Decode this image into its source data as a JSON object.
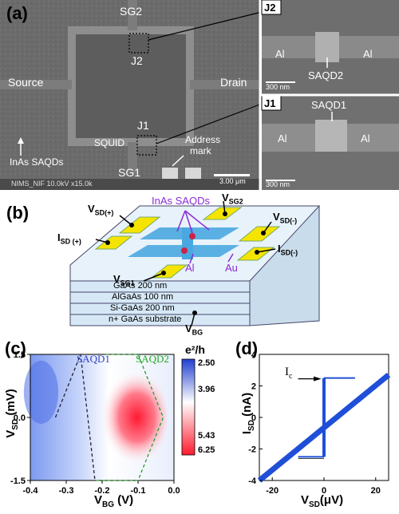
{
  "panel_a": {
    "letter": "(a)",
    "labels": {
      "sg2": "SG2",
      "sg1": "SG1",
      "source": "Source",
      "drain": "Drain",
      "j2": "J2",
      "j1": "J1",
      "squid": "SQUID",
      "inas": "InAs SAQDs",
      "address": "Address",
      "address2": "mark",
      "scale": "3.00 μm",
      "footer": "NIMS_NIF 10.0kV x15.0k"
    },
    "inset_j2": {
      "tag": "J2",
      "left": "Al",
      "right": "Al",
      "dot": "SAQD2",
      "scale": "300 nm"
    },
    "inset_j1": {
      "tag": "J1",
      "left": "Al",
      "right": "Al",
      "dot": "SAQD1",
      "scale": "300 nm"
    }
  },
  "panel_b": {
    "letter": "(b)",
    "inas": "InAs SAQDs",
    "al": "Al",
    "au": "Au",
    "vsd_plus": "V",
    "vsd_plus_sub": "SD(+)",
    "vsg2": "V",
    "vsg2_sub": "SG2",
    "vsd_minus": "V",
    "vsd_minus_sub": "SD(-)",
    "isd_plus": "I",
    "isd_plus_sub": "SD (+)",
    "isd_minus": "I",
    "isd_minus_sub": "SD(-)",
    "vsg1": "V",
    "vsg1_sub": "SG1",
    "vbg": "V",
    "vbg_sub": "BG",
    "layers": [
      "GaAs  200 nm",
      "AlGaAs 100 nm",
      "Si-GaAs 200 nm",
      "n+ GaAs substrate"
    ],
    "colors": {
      "gate": "#f5e400",
      "qd": "#4aa8e0",
      "dot": "#cc2244",
      "purple": "#8a2bd6",
      "layer": "#d6e8f6"
    }
  },
  "panel_c": {
    "letter": "(c)",
    "saqd1": "SAQD1",
    "saqd2": "SAQD2",
    "colorbar_title": "e²/h",
    "colorbar_ticks": [
      "2.50",
      "3.96",
      "5.43",
      "6.25"
    ],
    "xlabel": "V",
    "xlabel_sub": "BG",
    "xlabel_unit": " (V)",
    "ylabel": "V",
    "ylabel_sub": "SD",
    "ylabel_unit": " (mV)",
    "colors": {
      "blue": "#2a4bd8",
      "red": "#ff2a3a",
      "saqd1": "#3344cc",
      "saqd2": "#22aa22"
    }
  },
  "panel_d": {
    "letter": "(d)",
    "ic_label": "I",
    "ic_sub": "c",
    "xlabel": "V",
    "xlabel_sub": "SD",
    "xlabel_unit": "(μV)",
    "ylabel": "I",
    "ylabel_sub": "SD",
    "ylabel_unit": " (nA)",
    "color": "#1f4fd8"
  },
  "chart_data": [
    {
      "type": "heatmap",
      "title": "",
      "xlabel": "VBG (V)",
      "ylabel": "VSD (mV)",
      "xlim": [
        -0.4,
        0.0
      ],
      "ylim": [
        -1.5,
        1.5
      ],
      "x_ticks": [
        "-0.4",
        "-0.3",
        "-0.2",
        "-0.1",
        "0.0"
      ],
      "y_ticks": [
        "1.5",
        "0.0",
        "-1.5"
      ],
      "colorbar": {
        "label": "e2/h",
        "ticks": [
          2.5,
          3.96,
          5.43,
          6.25
        ]
      },
      "annotations": [
        "SAQD1",
        "SAQD2"
      ],
      "diamonds": [
        {
          "name": "SAQD1",
          "points": [
            [
              -0.33,
              0.0
            ],
            [
              -0.26,
              1.5
            ],
            [
              -0.22,
              -1.5
            ]
          ]
        },
        {
          "name": "SAQD2",
          "points": [
            [
              -0.19,
              1.5
            ],
            [
              -0.1,
              1.5
            ],
            [
              -0.03,
              0.0
            ],
            [
              -0.1,
              -1.5
            ],
            [
              -0.22,
              -1.5
            ]
          ]
        }
      ]
    },
    {
      "type": "line",
      "title": "",
      "xlabel": "VSD (μV)",
      "ylabel": "ISD (nA)",
      "xlim": [
        -25,
        25
      ],
      "ylim": [
        -4,
        4
      ],
      "x_ticks": [
        "-20",
        "0",
        "20"
      ],
      "y_ticks": [
        "4",
        "2",
        "0",
        "-2",
        "-4"
      ],
      "annotations": [
        "Ic"
      ],
      "series": [
        {
          "values_x": [
            -25,
            -10,
            0,
            0,
            10,
            25
          ],
          "values_y": [
            -4,
            -2.5,
            -2.5,
            2.5,
            2.5,
            2.5
          ]
        }
      ],
      "critical_current_nA": 2.5
    }
  ]
}
